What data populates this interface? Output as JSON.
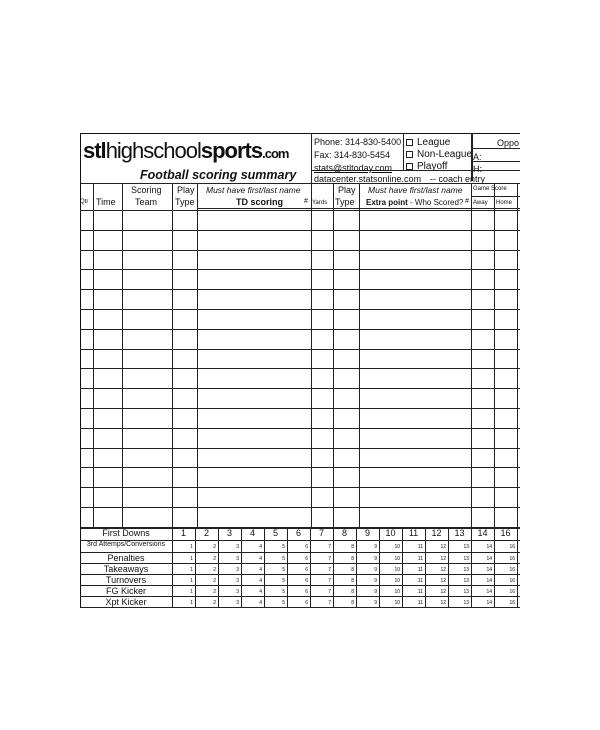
{
  "header": {
    "logo_prefix": "stl",
    "logo_mid": "highschool",
    "logo_bold": "sports",
    "logo_suffix": ".com",
    "title": "Football scoring summary",
    "phone": "Phone: 314-830-5400",
    "fax": "Fax: 314-830-5454",
    "email": "stats@stltoday.com",
    "website": "datacenter.statsonline.com",
    "coach_entry": "-- coach entry",
    "options": [
      "League",
      "Non-League",
      "Playoff"
    ],
    "opponent": "Oppo",
    "away_label": "A:",
    "home_label": "H:"
  },
  "columns": {
    "qtr": "Qtr",
    "time": "Time",
    "scoring": "Scoring",
    "team": "Team",
    "play": "Play",
    "type": "Type",
    "must1": "Must have first/last name",
    "td": "TD scoring",
    "hash": "#",
    "yards": "Yards",
    "play2": "Play",
    "type2": "Type",
    "must2": "Must have first/last name",
    "xp_bold": "Extra point",
    "xp_rest": "- Who Scored?",
    "hash2": "#",
    "game_score": "Game Score",
    "away": "Away",
    "home": "Home"
  },
  "stats": {
    "numbers": [
      "1",
      "2",
      "3",
      "4",
      "5",
      "6",
      "7",
      "8",
      "9",
      "10",
      "11",
      "12",
      "13",
      "14",
      "16"
    ],
    "rows": [
      "First Downs",
      "3rd Attemps/Conversions",
      "Penalties",
      "Takeaways",
      "Turnovers",
      "FG Kicker",
      "Xpt Kicker"
    ]
  }
}
